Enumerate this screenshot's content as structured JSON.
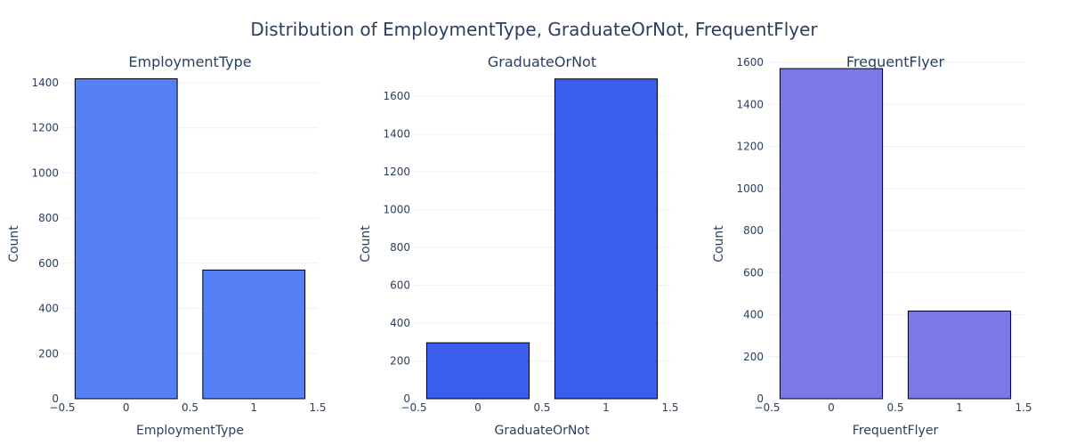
{
  "figure": {
    "title": "Distribution of EmploymentType, GraduateOrNot, FrequentFlyer"
  },
  "chart_data": [
    {
      "type": "bar",
      "title": "EmploymentType",
      "xlabel": "EmploymentType",
      "ylabel": "Count",
      "x": [
        0,
        1
      ],
      "values": [
        1417,
        570
      ],
      "xlim": [
        -0.5,
        1.5
      ],
      "ylim": [
        0,
        1490
      ],
      "xticks": [
        "−0.5",
        "0",
        "0.5",
        "1",
        "1.5"
      ],
      "yticks": [
        0,
        200,
        400,
        600,
        800,
        1000,
        1200,
        1400
      ],
      "color": "#5680f5",
      "grid": true
    },
    {
      "type": "bar",
      "title": "GraduateOrNot",
      "xlabel": "GraduateOrNot",
      "ylabel": "Count",
      "x": [
        0,
        1
      ],
      "values": [
        296,
        1692
      ],
      "xlim": [
        -0.5,
        1.5
      ],
      "ylim": [
        0,
        1780
      ],
      "xticks": [
        "−0.5",
        "0",
        "0.5",
        "1",
        "1.5"
      ],
      "yticks": [
        0,
        200,
        400,
        600,
        800,
        1000,
        1200,
        1400,
        1600
      ],
      "color": "#3b5deb",
      "grid": true
    },
    {
      "type": "bar",
      "title": "FrequentFlyer",
      "xlabel": "FrequentFlyer",
      "ylabel": "Count",
      "x": [
        0,
        1
      ],
      "values": [
        1570,
        417
      ],
      "xlim": [
        -0.5,
        1.5
      ],
      "ylim": [
        0,
        1600
      ],
      "xticks": [
        "−0.5",
        "0",
        "0.5",
        "1",
        "1.5"
      ],
      "yticks": [
        0,
        200,
        400,
        600,
        800,
        1000,
        1200,
        1400,
        1600
      ],
      "color": "#7b79e6",
      "grid": true
    }
  ]
}
